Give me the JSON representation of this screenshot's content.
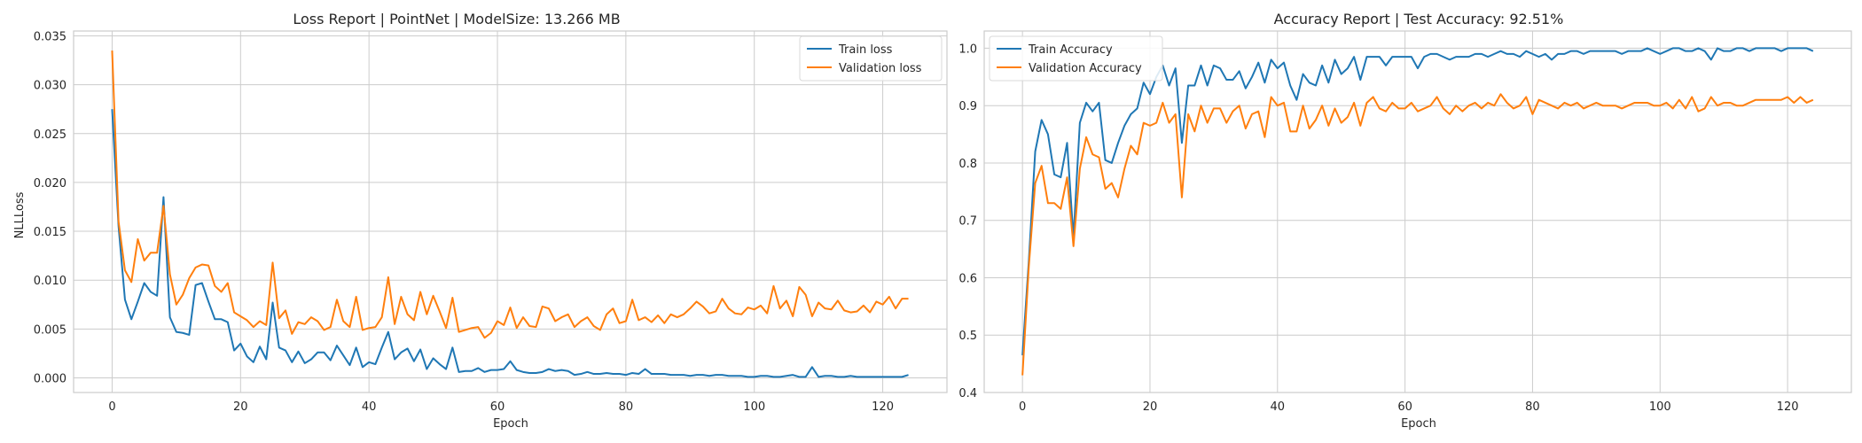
{
  "figure": {
    "background": "#ffffff",
    "grid_color": "#cccccc",
    "text_color": "#262626"
  },
  "chart_data": [
    {
      "type": "line",
      "title": "Loss Report | PointNet | ModelSize: 13.266 MB",
      "xlabel": "Epoch",
      "ylabel": "NLLLoss",
      "xlim": [
        -6,
        130
      ],
      "ylim": [
        -0.0015,
        0.0355
      ],
      "xticks": [
        0,
        20,
        40,
        60,
        80,
        100,
        120
      ],
      "xtick_labels": [
        "0",
        "20",
        "40",
        "60",
        "80",
        "100",
        "120"
      ],
      "yticks": [
        0.0,
        0.005,
        0.01,
        0.015,
        0.02,
        0.025,
        0.03,
        0.035
      ],
      "ytick_labels": [
        "0.000",
        "0.005",
        "0.010",
        "0.015",
        "0.020",
        "0.025",
        "0.030",
        "0.035"
      ],
      "grid": true,
      "legend_position": "upper-right",
      "x_start": 0,
      "series": [
        {
          "name": "Train loss",
          "color": "#1f77b4",
          "values": [
            0.0275,
            0.0155,
            0.008,
            0.006,
            0.0078,
            0.0097,
            0.0088,
            0.0084,
            0.0185,
            0.0062,
            0.0047,
            0.0046,
            0.0044,
            0.0095,
            0.0097,
            0.0078,
            0.006,
            0.006,
            0.0057,
            0.0028,
            0.0035,
            0.0022,
            0.0016,
            0.0032,
            0.0019,
            0.0077,
            0.0031,
            0.0028,
            0.0016,
            0.0027,
            0.0015,
            0.0019,
            0.0026,
            0.0026,
            0.0018,
            0.0033,
            0.0023,
            0.0013,
            0.0031,
            0.0011,
            0.0016,
            0.0014,
            0.0031,
            0.0047,
            0.0019,
            0.0026,
            0.003,
            0.0017,
            0.0029,
            0.0009,
            0.002,
            0.0014,
            0.0009,
            0.0031,
            0.0006,
            0.0007,
            0.0007,
            0.001,
            0.0006,
            0.0008,
            0.0008,
            0.0009,
            0.0017,
            0.0008,
            0.0006,
            0.0005,
            0.0005,
            0.0006,
            0.0009,
            0.0007,
            0.0008,
            0.0007,
            0.0003,
            0.0004,
            0.0006,
            0.0004,
            0.0004,
            0.0005,
            0.0004,
            0.0004,
            0.0003,
            0.0005,
            0.0004,
            0.0009,
            0.0004,
            0.0004,
            0.0004,
            0.0003,
            0.0003,
            0.0003,
            0.0002,
            0.0003,
            0.0003,
            0.0002,
            0.0003,
            0.0003,
            0.0002,
            0.0002,
            0.0002,
            0.0001,
            0.0001,
            0.0002,
            0.0002,
            0.0001,
            0.0001,
            0.0002,
            0.0003,
            0.0001,
            0.0001,
            0.0011,
            0.0001,
            0.0002,
            0.0002,
            0.0001,
            0.0001,
            0.0002,
            0.0001,
            0.0001,
            0.0001,
            0.0001,
            0.0001,
            0.0001,
            0.0001,
            0.0001,
            0.0003
          ]
        },
        {
          "name": "Validation loss",
          "color": "#ff7f0e",
          "values": [
            0.0335,
            0.016,
            0.011,
            0.0098,
            0.0142,
            0.012,
            0.0128,
            0.0128,
            0.0176,
            0.0106,
            0.0075,
            0.0085,
            0.0102,
            0.0113,
            0.0116,
            0.0115,
            0.0094,
            0.0088,
            0.0097,
            0.0067,
            0.0063,
            0.0059,
            0.0052,
            0.0058,
            0.0054,
            0.0118,
            0.0061,
            0.0069,
            0.0045,
            0.0057,
            0.0055,
            0.0062,
            0.0058,
            0.0049,
            0.0052,
            0.008,
            0.0058,
            0.0052,
            0.0083,
            0.0049,
            0.0051,
            0.0052,
            0.0062,
            0.0103,
            0.0055,
            0.0083,
            0.0065,
            0.0059,
            0.0088,
            0.0065,
            0.0084,
            0.0068,
            0.0051,
            0.0082,
            0.0047,
            0.0049,
            0.0051,
            0.0052,
            0.0041,
            0.0046,
            0.0058,
            0.0054,
            0.0072,
            0.0051,
            0.0062,
            0.0053,
            0.0052,
            0.0073,
            0.0071,
            0.0058,
            0.0062,
            0.0065,
            0.0052,
            0.0058,
            0.0062,
            0.0053,
            0.0049,
            0.0065,
            0.0071,
            0.0056,
            0.0058,
            0.008,
            0.0059,
            0.0062,
            0.0057,
            0.0064,
            0.0056,
            0.0065,
            0.0062,
            0.0065,
            0.0071,
            0.0078,
            0.0073,
            0.0066,
            0.0068,
            0.0081,
            0.0071,
            0.0066,
            0.0065,
            0.0072,
            0.007,
            0.0074,
            0.0066,
            0.0094,
            0.0071,
            0.0079,
            0.0063,
            0.0093,
            0.0085,
            0.0063,
            0.0077,
            0.0071,
            0.007,
            0.0079,
            0.0069,
            0.0067,
            0.0068,
            0.0074,
            0.0067,
            0.0078,
            0.0075,
            0.0083,
            0.0071,
            0.0081,
            0.0081
          ]
        }
      ]
    },
    {
      "type": "line",
      "title": "Accuracy Report | Test Accuracy: 92.51%",
      "xlabel": "Epoch",
      "ylabel": "",
      "xlim": [
        -6,
        130
      ],
      "ylim": [
        0.4,
        1.03
      ],
      "xticks": [
        0,
        20,
        40,
        60,
        80,
        100,
        120
      ],
      "xtick_labels": [
        "0",
        "20",
        "40",
        "60",
        "80",
        "100",
        "120"
      ],
      "yticks": [
        0.4,
        0.5,
        0.6,
        0.7,
        0.8,
        0.9,
        1.0
      ],
      "ytick_labels": [
        "0.4",
        "0.5",
        "0.6",
        "0.7",
        "0.8",
        "0.9",
        "1.0"
      ],
      "grid": true,
      "legend_position": "upper-left",
      "x_start": 0,
      "series": [
        {
          "name": "Train Accuracy",
          "color": "#1f77b4",
          "values": [
            0.465,
            0.63,
            0.82,
            0.875,
            0.85,
            0.78,
            0.775,
            0.835,
            0.67,
            0.87,
            0.905,
            0.89,
            0.905,
            0.805,
            0.8,
            0.835,
            0.865,
            0.885,
            0.895,
            0.94,
            0.92,
            0.95,
            0.97,
            0.935,
            0.965,
            0.835,
            0.935,
            0.935,
            0.97,
            0.935,
            0.97,
            0.965,
            0.945,
            0.945,
            0.96,
            0.93,
            0.95,
            0.975,
            0.94,
            0.98,
            0.965,
            0.975,
            0.935,
            0.91,
            0.955,
            0.94,
            0.935,
            0.97,
            0.94,
            0.98,
            0.955,
            0.965,
            0.985,
            0.945,
            0.985,
            0.985,
            0.985,
            0.97,
            0.985,
            0.985,
            0.985,
            0.985,
            0.965,
            0.985,
            0.99,
            0.99,
            0.985,
            0.98,
            0.985,
            0.985,
            0.985,
            0.99,
            0.99,
            0.985,
            0.99,
            0.995,
            0.99,
            0.99,
            0.985,
            0.995,
            0.99,
            0.985,
            0.99,
            0.98,
            0.99,
            0.99,
            0.995,
            0.995,
            0.99,
            0.995,
            0.995,
            0.995,
            0.995,
            0.995,
            0.99,
            0.995,
            0.995,
            0.995,
            1.0,
            0.995,
            0.99,
            0.995,
            1.0,
            1.0,
            0.995,
            0.995,
            1.0,
            0.995,
            0.98,
            1.0,
            0.995,
            0.995,
            1.0,
            1.0,
            0.995,
            1.0,
            1.0,
            1.0,
            1.0,
            0.995,
            1.0,
            1.0,
            1.0,
            1.0,
            0.995
          ]
        },
        {
          "name": "Validation Accuracy",
          "color": "#ff7f0e",
          "values": [
            0.43,
            0.62,
            0.765,
            0.795,
            0.73,
            0.73,
            0.72,
            0.775,
            0.655,
            0.79,
            0.845,
            0.815,
            0.81,
            0.755,
            0.765,
            0.74,
            0.79,
            0.83,
            0.815,
            0.87,
            0.865,
            0.87,
            0.905,
            0.87,
            0.885,
            0.74,
            0.885,
            0.855,
            0.9,
            0.87,
            0.895,
            0.895,
            0.87,
            0.89,
            0.9,
            0.86,
            0.885,
            0.89,
            0.845,
            0.915,
            0.9,
            0.905,
            0.855,
            0.855,
            0.9,
            0.86,
            0.875,
            0.9,
            0.865,
            0.895,
            0.87,
            0.88,
            0.905,
            0.865,
            0.905,
            0.915,
            0.895,
            0.89,
            0.905,
            0.895,
            0.895,
            0.905,
            0.89,
            0.895,
            0.9,
            0.915,
            0.895,
            0.885,
            0.9,
            0.89,
            0.9,
            0.905,
            0.895,
            0.905,
            0.9,
            0.92,
            0.905,
            0.895,
            0.9,
            0.915,
            0.885,
            0.91,
            0.905,
            0.9,
            0.895,
            0.905,
            0.9,
            0.905,
            0.895,
            0.9,
            0.905,
            0.9,
            0.9,
            0.9,
            0.895,
            0.9,
            0.905,
            0.905,
            0.905,
            0.9,
            0.9,
            0.905,
            0.895,
            0.91,
            0.895,
            0.915,
            0.89,
            0.895,
            0.915,
            0.9,
            0.905,
            0.905,
            0.9,
            0.9,
            0.905,
            0.91,
            0.91,
            0.91,
            0.91,
            0.91,
            0.915,
            0.905,
            0.915,
            0.905,
            0.91
          ]
        }
      ]
    }
  ]
}
